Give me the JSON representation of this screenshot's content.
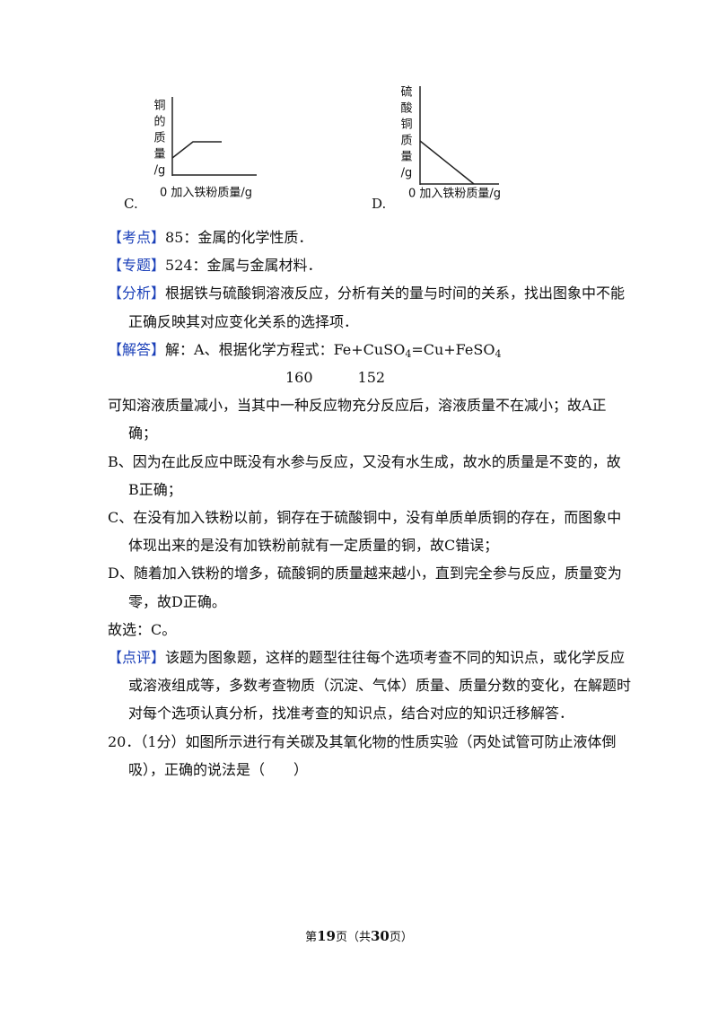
{
  "graphs": [
    {
      "option": "C.",
      "y_label": [
        "铜",
        "的",
        "质",
        "量",
        "/g"
      ],
      "x_label": "0 加入铁粉质量/g"
    },
    {
      "option": "D.",
      "y_label": [
        "硫",
        "酸",
        "铜",
        "质",
        "量",
        "/g"
      ],
      "x_label": "0 加入铁粉质量/g"
    }
  ],
  "notes": [
    {
      "label": "【考点】",
      "lines": [
        "85：金属的化学性质．"
      ]
    },
    {
      "label": "【专题】",
      "lines": [
        "524：金属与金属材料．"
      ]
    },
    {
      "label": "【分析】",
      "lines": [
        "根据铁与硫酸铜溶液反应，分析有关的量与时间的关系，找出图象中不能",
        "正确反映其对应变化关系的选择项．"
      ]
    }
  ],
  "solution": {
    "label": "【解答】",
    "intro": "解：A、根据化学方程式：",
    "equation": [
      "Fe+CuSO",
      "4",
      "=Cu+FeSO",
      "4"
    ],
    "masses": [
      160,
      152
    ],
    "paragraphs": [
      [
        "可知溶液质量减小，当其中一种反应物充分反应后，溶液质量不在减小；故A正",
        "确；"
      ],
      [
        "B、因为在此反应中既没有水参与反应，又没有水生成，故水的质量是不变的，故",
        "B正确；"
      ],
      [
        "C、在没有加入铁粉以前，铜存在于硫酸铜中，没有单质单质铜的存在，而图象中",
        "体现出来的是没有加铁粉前就有一定质量的铜，故C错误；"
      ],
      [
        "D、随着加入铁粉的增多，硫酸铜的质量越来越小，直到完全参与反应，质量变为",
        "零，故D正确。"
      ],
      [
        "故选：C。"
      ]
    ]
  },
  "comment": {
    "label": "【点评】",
    "lines": [
      "该题为图象题，这样的题型往往每个选项考查不同的知识点，或化学反应",
      "或溶液组成等，多数考查物质（沉淀、气体）质量、质量分数的变化，在解题时",
      "对每个选项认真分析，找准考查的知识点，结合对应的知识迁移解答．"
    ]
  },
  "question": {
    "lines": [
      "20．（1分）如图所示进行有关碳及其氧化物的性质实验（丙处试管可防止液体倒",
      "吸），正确的说法是（　　）"
    ]
  },
  "footer": {
    "prefix": "第",
    "page": 19,
    "middle": "页（共",
    "total": 30,
    "suffix": "页）"
  }
}
